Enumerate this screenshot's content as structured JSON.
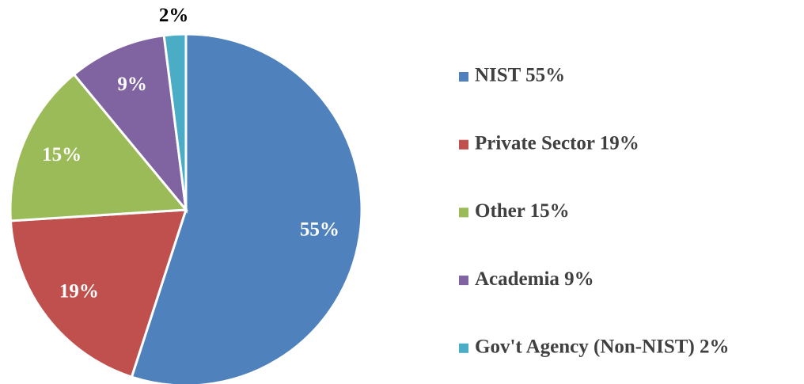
{
  "chart_data": {
    "type": "pie",
    "categories": [
      "NIST 55%",
      "Private Sector 19%",
      "Other 15%",
      "Academia 9%",
      "Gov't Agency (Non-NIST) 2%"
    ],
    "values": [
      55,
      19,
      15,
      9,
      2
    ],
    "value_labels": [
      "55%",
      "19%",
      "15%",
      "9%",
      "2%"
    ],
    "colors": [
      "#4f81bd",
      "#c0504d",
      "#9bbb59",
      "#8064a2",
      "#4bacc6"
    ],
    "legend": "right"
  }
}
